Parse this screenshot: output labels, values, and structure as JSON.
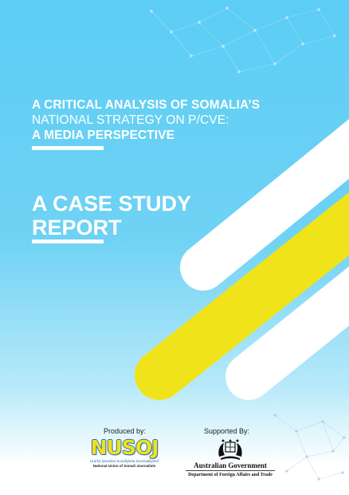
{
  "report": {
    "title_line1": "A CRITICAL ANALYSIS OF SOMALIA’S",
    "title_line2": "NATIONAL STRATEGY ON P/CVE:",
    "title_line3": "A MEDIA PERSPECTIVE",
    "subtitle_line1": "A CASE STUDY",
    "subtitle_line2": "REPORT"
  },
  "credits": {
    "produced_label": "Produced by:",
    "supported_label": "Supported By:"
  },
  "nusoj_logo": {
    "wordmark": "NUSOJ",
    "somali_name": "Ururka Qaranka Suxufiyiinta Soomaaliyeed",
    "english_name": "National Union of Somali Journalists"
  },
  "aus_logo": {
    "government": "Australian Government",
    "department": "Department of Foreign Affairs and Trade"
  },
  "colors": {
    "background": "#5ccdf5",
    "stripe_yellow": "#f1e31a",
    "stripe_white": "#ffffff",
    "text": "#ffffff"
  }
}
